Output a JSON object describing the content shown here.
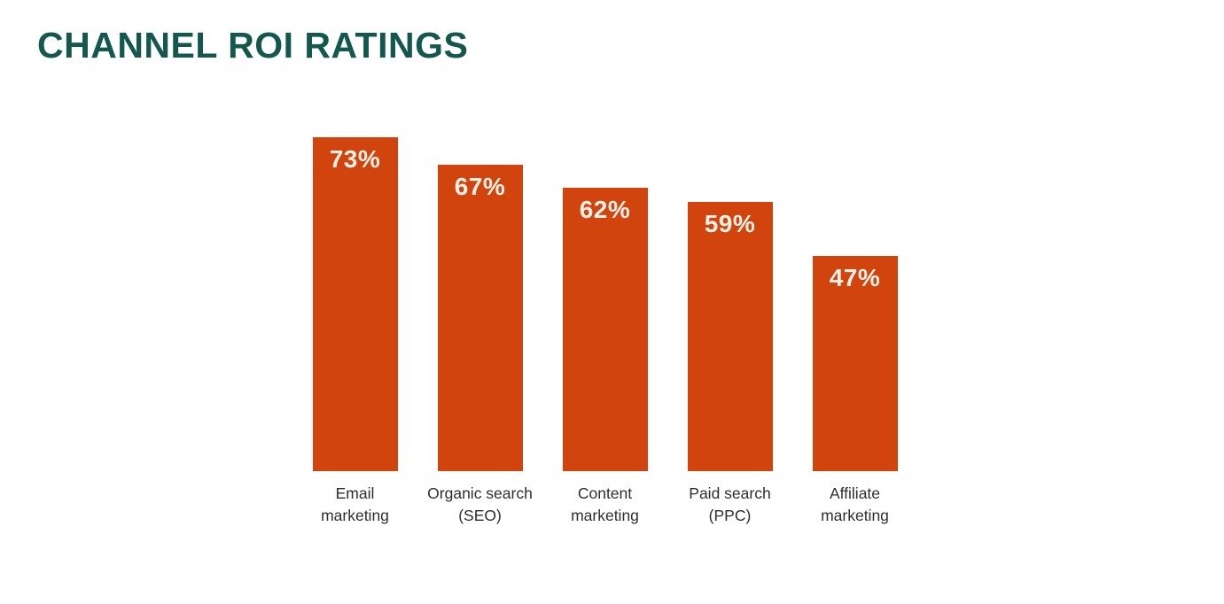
{
  "title": "CHANNEL ROI RATINGS",
  "colors": {
    "title": "#14584D",
    "bar": "#D1440D",
    "value_label": "#F6F1E8",
    "category_label": "#2E2E2E",
    "background": "#FFFFFF"
  },
  "chart_data": {
    "type": "bar",
    "title": "CHANNEL ROI RATINGS",
    "categories": [
      "Email marketing",
      "Organic search (SEO)",
      "Content marketing",
      "Paid search (PPC)",
      "Affiliate marketing"
    ],
    "category_lines": [
      [
        "Email",
        "marketing"
      ],
      [
        "Organic search",
        "(SEO)"
      ],
      [
        "Content",
        "marketing"
      ],
      [
        "Paid search",
        "(PPC)"
      ],
      [
        "Affiliate",
        "marketing"
      ]
    ],
    "values": [
      73,
      67,
      62,
      59,
      47
    ],
    "value_labels": [
      "73%",
      "67%",
      "62%",
      "59%",
      "47%"
    ],
    "unit": "%",
    "xlabel": "",
    "ylabel": "",
    "ylim": [
      0,
      100
    ],
    "grid": false,
    "axes_visible": false,
    "legend": "none",
    "value_label_position": "inside-top",
    "bar_color": "#D1440D"
  }
}
